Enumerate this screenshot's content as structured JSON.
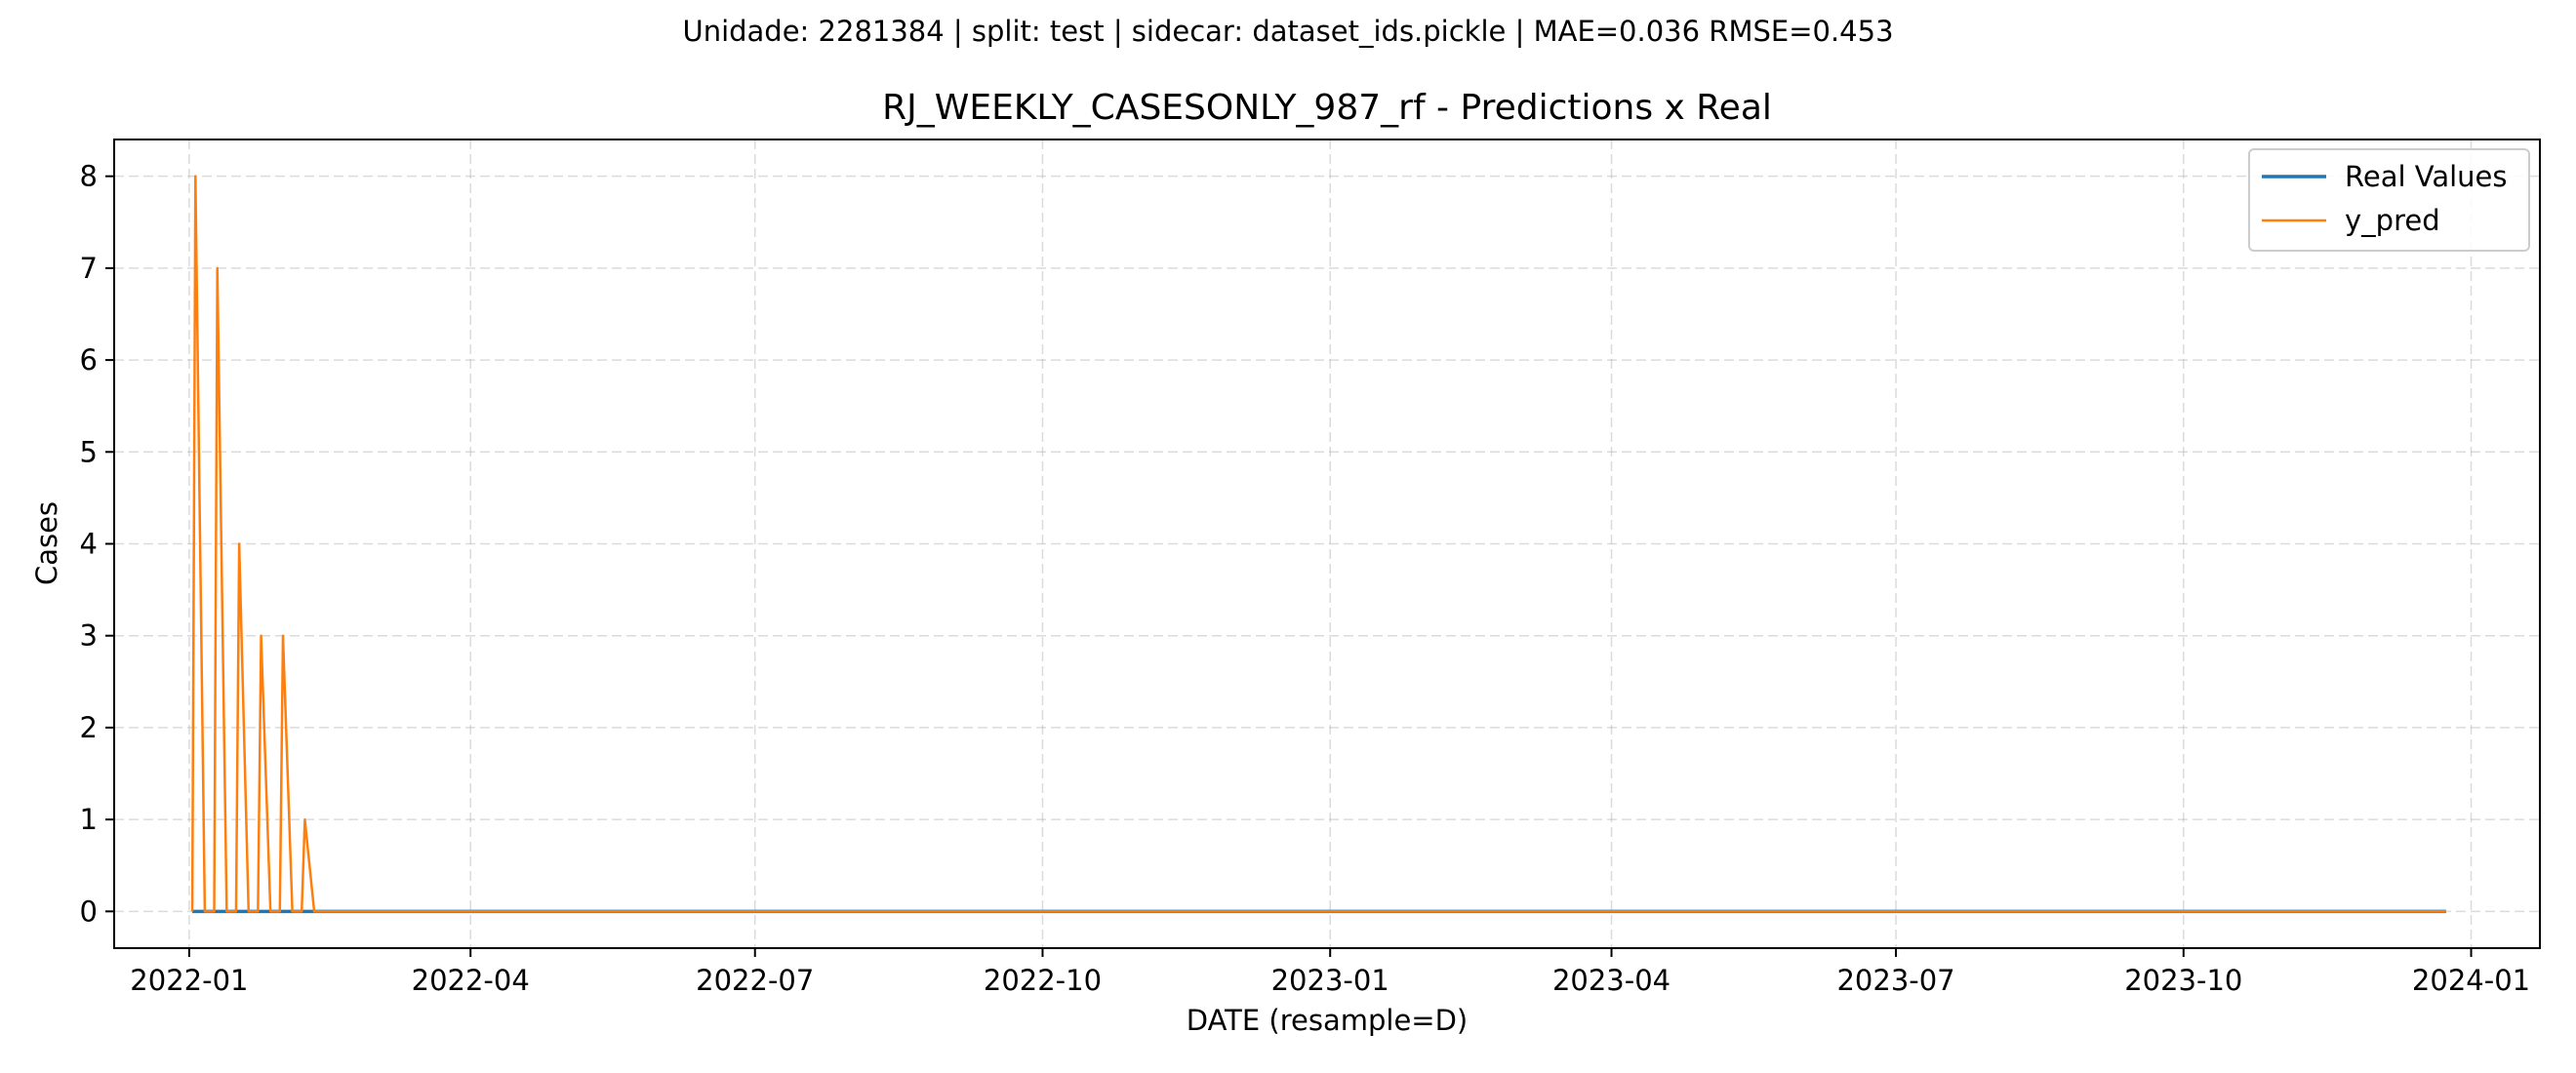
{
  "suptitle": "Unidade: 2281384 | split: test | sidecar: dataset_ids.pickle | MAE=0.036  RMSE=0.453",
  "chart_data": {
    "type": "line",
    "title": "RJ_WEEKLY_CASESONLY_987_rf - Predictions x Real",
    "xlabel": "DATE (resample=D)",
    "ylabel": "Cases",
    "xlim": [
      "2021-12-08",
      "2024-01-23"
    ],
    "ylim": [
      -0.4,
      8.4
    ],
    "x_ticks": [
      "2022-01-01",
      "2022-04-01",
      "2022-07-01",
      "2022-10-01",
      "2023-01-01",
      "2023-04-01",
      "2023-07-01",
      "2023-10-01",
      "2024-01-01"
    ],
    "x_tick_labels": [
      "2022-01",
      "2022-04",
      "2022-07",
      "2022-10",
      "2023-01",
      "2023-04",
      "2023-07",
      "2023-10",
      "2024-01"
    ],
    "y_ticks": [
      0,
      1,
      2,
      3,
      4,
      5,
      6,
      7,
      8
    ],
    "y_tick_labels": [
      "0",
      "1",
      "2",
      "3",
      "4",
      "5",
      "6",
      "7",
      "8"
    ],
    "grid": true,
    "legend": "upper-right",
    "series": [
      {
        "name": "Real Values",
        "color": "#1f77b4",
        "points": [
          [
            "2022-01-02",
            0
          ],
          [
            "2023-12-24",
            0
          ]
        ]
      },
      {
        "name": "y_pred",
        "color": "#ff7f0e",
        "points": [
          [
            "2022-01-02",
            0
          ],
          [
            "2022-01-03",
            8
          ],
          [
            "2022-01-06",
            0
          ],
          [
            "2022-01-09",
            0
          ],
          [
            "2022-01-10",
            7
          ],
          [
            "2022-01-13",
            0
          ],
          [
            "2022-01-16",
            0
          ],
          [
            "2022-01-17",
            4
          ],
          [
            "2022-01-20",
            0
          ],
          [
            "2022-01-23",
            0
          ],
          [
            "2022-01-24",
            3
          ],
          [
            "2022-01-27",
            0
          ],
          [
            "2022-01-30",
            0
          ],
          [
            "2022-01-31",
            3
          ],
          [
            "2022-02-03",
            0
          ],
          [
            "2022-02-06",
            0
          ],
          [
            "2022-02-07",
            1
          ],
          [
            "2022-02-10",
            0
          ],
          [
            "2023-12-24",
            0
          ]
        ]
      }
    ]
  }
}
